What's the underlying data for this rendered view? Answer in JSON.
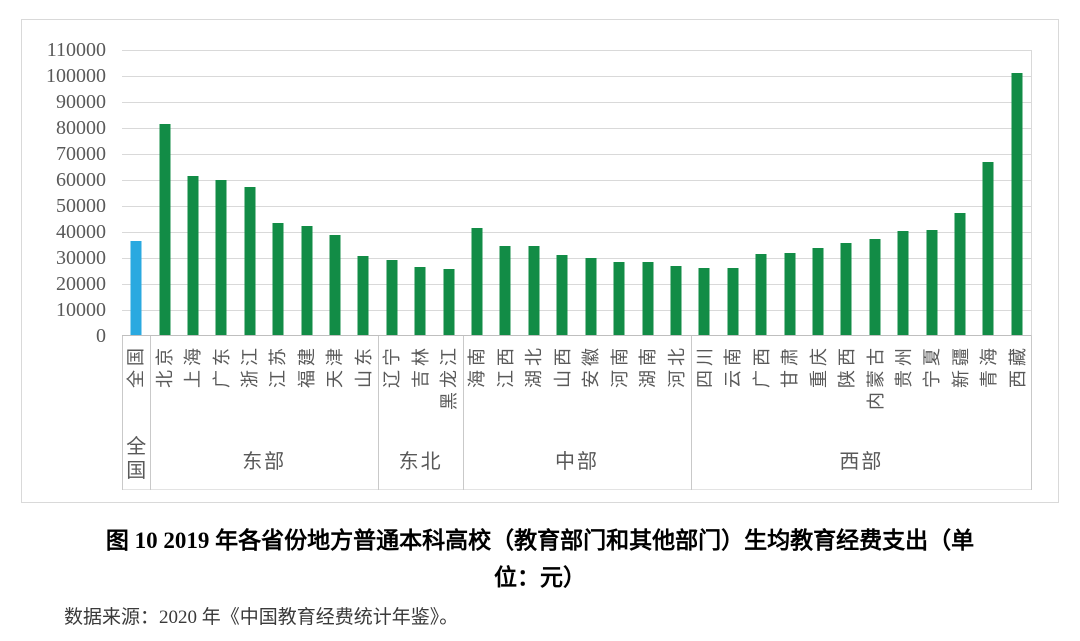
{
  "figure": {
    "caption_line1": "图 10  2019 年各省份地方普通本科高校（教育部门和其他部门）生均教育经费支出（单",
    "caption_line2": "位：元）",
    "source": "数据来源：2020 年《中国教育经费统计年鉴》。"
  },
  "chart_data": {
    "type": "bar",
    "unit": "元",
    "ylim": [
      0,
      110000
    ],
    "ytick_interval": 10000,
    "yticks": [
      "0",
      "10000",
      "20000",
      "30000",
      "40000",
      "50000",
      "60000",
      "70000",
      "80000",
      "90000",
      "100000",
      "110000"
    ],
    "grid": true,
    "legend": "none",
    "colors": {
      "national": "#2aa9e0",
      "default": "#128c46",
      "gridline": "#d9d9d9",
      "axis_text": "#595959"
    },
    "groups": [
      {
        "label": "全国",
        "stacked_label": true,
        "provinces": [
          {
            "name": "全国",
            "value": 36300,
            "color": "#2aa9e0"
          }
        ]
      },
      {
        "label": "东部",
        "provinces": [
          {
            "name": "北京",
            "value": 81300
          },
          {
            "name": "上海",
            "value": 61000
          },
          {
            "name": "广东",
            "value": 59700
          },
          {
            "name": "浙江",
            "value": 57100
          },
          {
            "name": "江苏",
            "value": 43200
          },
          {
            "name": "福建",
            "value": 41900
          },
          {
            "name": "天津",
            "value": 38600
          },
          {
            "name": "山东",
            "value": 30500
          }
        ]
      },
      {
        "label": "东北",
        "provinces": [
          {
            "name": "辽宁",
            "value": 28900
          },
          {
            "name": "吉林",
            "value": 26100
          },
          {
            "name": "黑龙江",
            "value": 25400
          }
        ]
      },
      {
        "label": "中部",
        "provinces": [
          {
            "name": "海南",
            "value": 41100
          },
          {
            "name": "江西",
            "value": 34400
          },
          {
            "name": "湖北",
            "value": 34100
          },
          {
            "name": "山西",
            "value": 30700
          },
          {
            "name": "安徽",
            "value": 29500
          },
          {
            "name": "河南",
            "value": 27900
          },
          {
            "name": "湖南",
            "value": 27900
          },
          {
            "name": "河北",
            "value": 26600
          }
        ]
      },
      {
        "label": "西部",
        "provinces": [
          {
            "name": "四川",
            "value": 25800
          },
          {
            "name": "云南",
            "value": 25900
          },
          {
            "name": "广西",
            "value": 31100
          },
          {
            "name": "甘肃",
            "value": 31600
          },
          {
            "name": "重庆",
            "value": 33300
          },
          {
            "name": "陕西",
            "value": 35200
          },
          {
            "name": "内蒙古",
            "value": 37100
          },
          {
            "name": "贵州",
            "value": 39900
          },
          {
            "name": "宁夏",
            "value": 40200
          },
          {
            "name": "新疆",
            "value": 46900
          },
          {
            "name": "青海",
            "value": 66500
          },
          {
            "name": "西藏",
            "value": 100700
          }
        ]
      }
    ]
  }
}
